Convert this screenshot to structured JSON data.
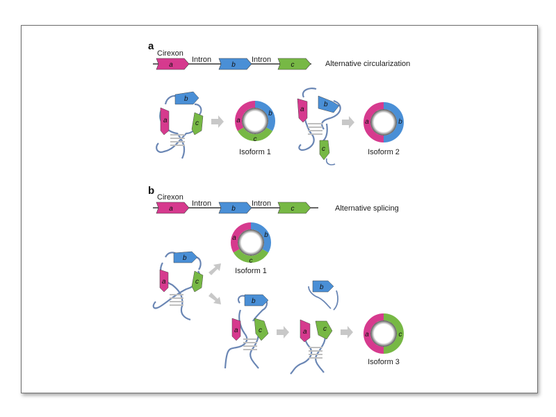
{
  "colors": {
    "exon_a": "#d63a8e",
    "exon_b": "#4a8fd6",
    "exon_c": "#77b845",
    "intron_strand": "#6a86b4",
    "arrow": "#c8c8c8",
    "frame": "#6e6e6e"
  },
  "panel_a": {
    "letter": "a",
    "cirexon_label": "Cirexon",
    "intron_label_1": "Intron",
    "intron_label_2": "Intron",
    "exons": [
      "a",
      "b",
      "c"
    ],
    "caption": "Alternative circularization",
    "isoform_1": "Isoform 1",
    "isoform_2": "Isoform 2"
  },
  "panel_b": {
    "letter": "b",
    "cirexon_label": "Cirexon",
    "intron_label_1": "Intron",
    "intron_label_2": "Intron",
    "exons": [
      "a",
      "b",
      "c"
    ],
    "caption": "Alternative splicing",
    "isoform_1": "Isoform 1",
    "isoform_3": "Isoform 3"
  }
}
